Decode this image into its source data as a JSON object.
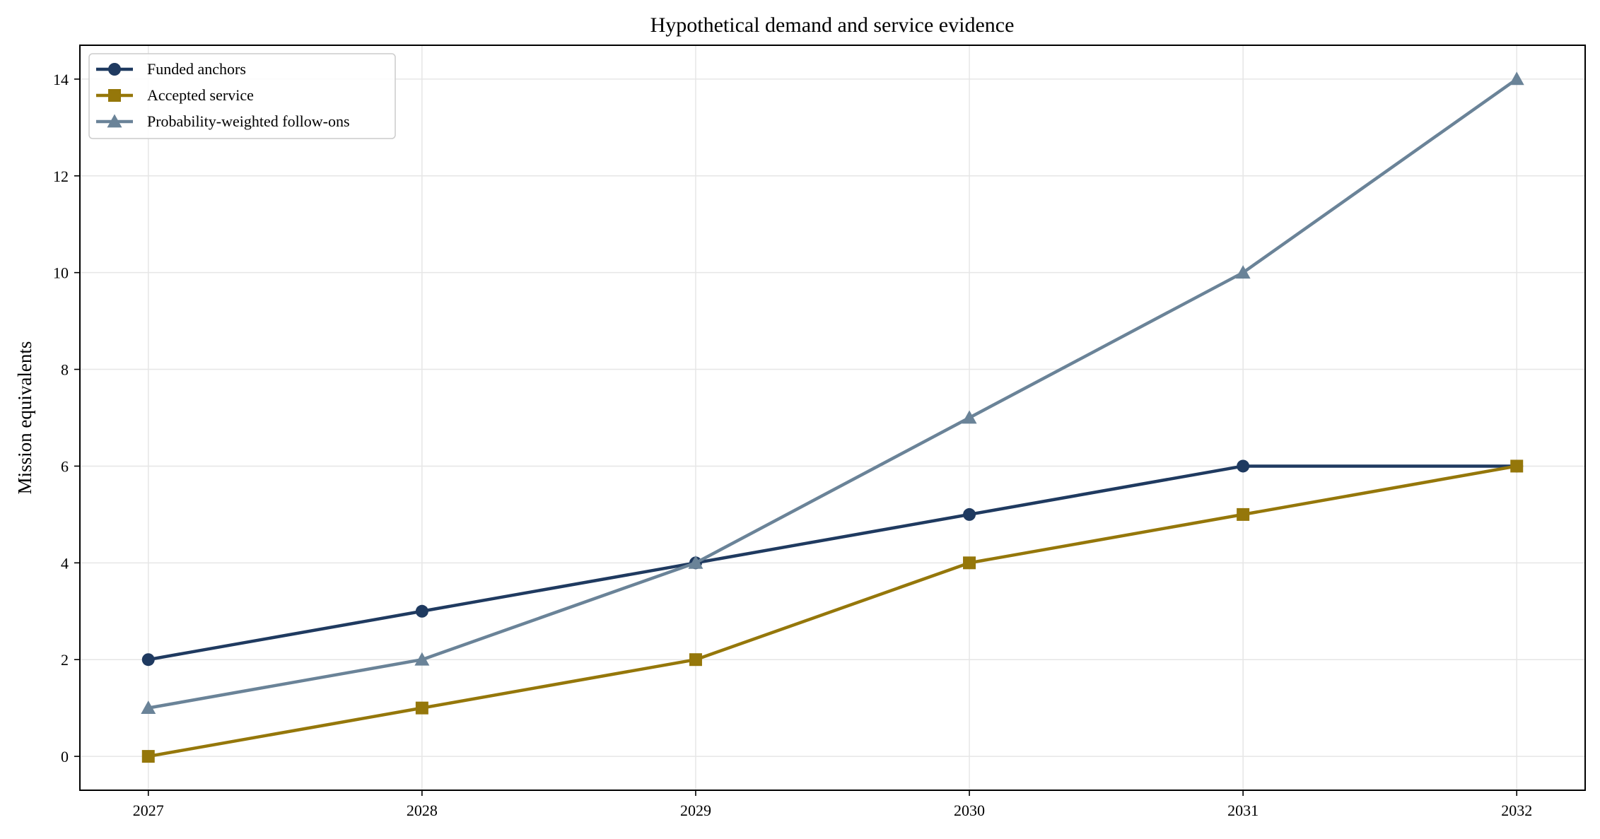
{
  "chart_data": {
    "type": "line",
    "title": "Hypothetical demand and service evidence",
    "xlabel": "",
    "ylabel": "Mission equivalents",
    "x": [
      2027,
      2028,
      2029,
      2030,
      2031,
      2032
    ],
    "x_tick_labels": [
      "2027",
      "2028",
      "2029",
      "2030",
      "2031",
      "2032"
    ],
    "xlim": [
      2026.75,
      2032.25
    ],
    "ylim": [
      -0.7,
      14.7
    ],
    "y_ticks": [
      0,
      2,
      4,
      6,
      8,
      10,
      12,
      14
    ],
    "y_tick_labels": [
      "0",
      "2",
      "4",
      "6",
      "8",
      "10",
      "12",
      "14"
    ],
    "grid": true,
    "legend_position": "top-left",
    "series": [
      {
        "name": "Funded anchors",
        "values": [
          2,
          3,
          4,
          5,
          6,
          6
        ],
        "color": "#1f3a60",
        "marker": "circle"
      },
      {
        "name": "Accepted service",
        "values": [
          0,
          1,
          2,
          4,
          5,
          6
        ],
        "color": "#95770a",
        "marker": "square"
      },
      {
        "name": "Probability-weighted follow-ons",
        "values": [
          1,
          2,
          4,
          7,
          10,
          14
        ],
        "color": "#6a8398",
        "marker": "triangle"
      }
    ]
  }
}
